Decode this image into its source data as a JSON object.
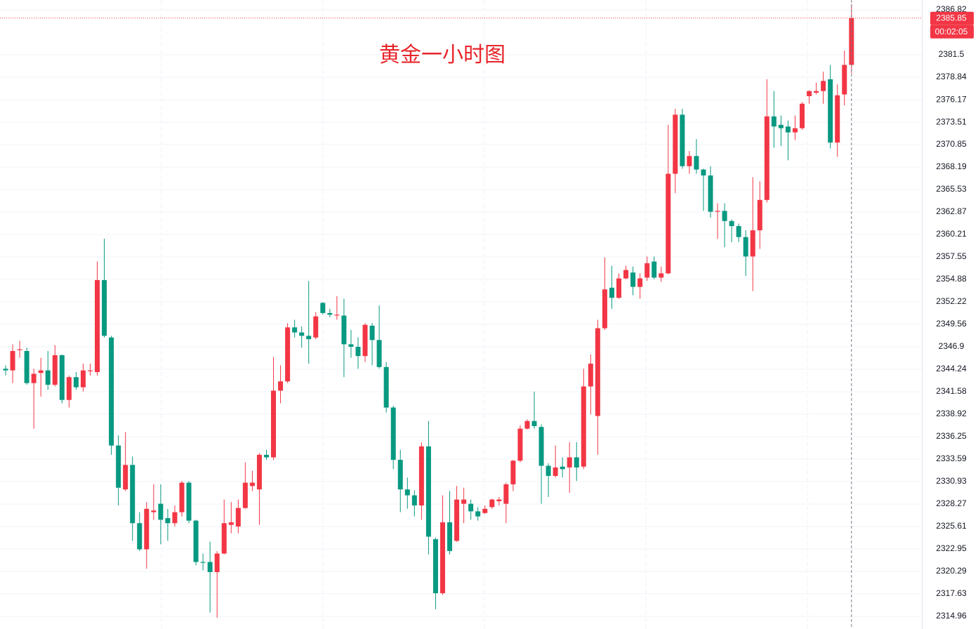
{
  "chart_data": {
    "type": "candlestick",
    "title": "黄金一小时图",
    "up_color": "#f23645",
    "down_color": "#089981",
    "ylim": [
      2313.46,
      2387.99
    ],
    "yticks": [
      2386.82,
      2381.5,
      2378.84,
      2376.17,
      2373.51,
      2370.85,
      2368.19,
      2365.53,
      2362.87,
      2360.21,
      2357.55,
      2354.88,
      2352.22,
      2349.56,
      2346.9,
      2344.24,
      2341.58,
      2338.92,
      2336.25,
      2333.59,
      2330.93,
      2328.27,
      2325.61,
      2322.95,
      2320.29,
      2317.63,
      2314.96
    ],
    "grid": true,
    "last_price": 2385.85,
    "countdown": "00:02:05",
    "open": [
      2344.3,
      2344.1,
      2346.5,
      2346.4,
      2342.6,
      2343.8,
      2344.1,
      2342.4,
      2345.9,
      2340.6,
      2343.3,
      2342.1,
      2344.0,
      2343.9,
      2354.8,
      2348.0,
      2335.2,
      2330.0,
      2332.9,
      2326.0,
      2322.9,
      2327.3,
      2328.3,
      2326.6,
      2326.0,
      2327.3,
      2330.8,
      2326.3,
      2321.4,
      2321.4,
      2320.2,
      2322.4,
      2325.8,
      2325.6,
      2327.8,
      2330.4,
      2330.0,
      2334.1,
      2333.8,
      2341.7,
      2342.8,
      2349.2,
      2348.6,
      2348.2,
      2348.0,
      2352.1,
      2350.9,
      2350.6,
      2350.6,
      2347.2,
      2346.9,
      2345.8,
      2349.4,
      2347.7,
      2344.5,
      2339.7,
      2333.5,
      2330.0,
      2329.3,
      2328.1,
      2335.1,
      2324.1,
      2317.7,
      2326.1,
      2323.9,
      2328.3,
      2328.3,
      2327.4,
      2327.2,
      2327.9,
      2328.6,
      2328.3,
      2330.6,
      2333.4,
      2337.2,
      2338.1,
      2337.4,
      2332.8,
      2331.6,
      2332.7,
      2332.6,
      2333.8,
      2332.7,
      2342.2,
      2338.7,
      2349.1,
      2353.9,
      2352.7,
      2355.0,
      2355.7,
      2354.0,
      2355.1,
      2357.0,
      2355.1,
      2355.6,
      2367.4,
      2374.4,
      2368.3,
      2369.5,
      2367.9,
      2367.2,
      2362.9,
      2363.0,
      2361.8,
      2361.2,
      2359.9,
      2357.6,
      2360.7,
      2364.3,
      2374.2,
      2373.2,
      2373.0,
      2372.3,
      2372.8,
      2376.6,
      2377.0,
      2377.2,
      2378.6,
      2371.1,
      2376.8,
      2380.3
    ],
    "high": [
      2344.7,
      2347.2,
      2347.6,
      2346.8,
      2344.3,
      2345.6,
      2346.4,
      2347.1,
      2346.0,
      2343.5,
      2343.9,
      2344.9,
      2344.9,
      2357.0,
      2359.7,
      2348.2,
      2336.4,
      2336.8,
      2333.9,
      2327.3,
      2328.5,
      2330.6,
      2330.6,
      2327.7,
      2328.1,
      2331.0,
      2331.0,
      2326.4,
      2322.4,
      2323.8,
      2322.7,
      2328.8,
      2328.5,
      2328.8,
      2333.2,
      2332.2,
      2334.3,
      2334.7,
      2345.7,
      2344.7,
      2349.7,
      2350.1,
      2349.3,
      2354.7,
      2351.0,
      2352.2,
      2351.4,
      2352.9,
      2352.6,
      2348.9,
      2348.0,
      2349.7,
      2349.7,
      2351.8,
      2345.1,
      2339.9,
      2334.7,
      2331.4,
      2329.9,
      2335.6,
      2338.1,
      2324.3,
      2329.3,
      2329.8,
      2330.4,
      2330.2,
      2328.8,
      2327.9,
      2328.1,
      2328.9,
      2329.1,
      2330.8,
      2333.5,
      2337.6,
      2338.3,
      2341.6,
      2337.7,
      2333.1,
      2335.2,
      2333.8,
      2335.6,
      2335.6,
      2344.3,
      2346.0,
      2350.1,
      2357.5,
      2356.5,
      2355.6,
      2356.5,
      2356.4,
      2355.6,
      2357.6,
      2357.6,
      2356.4,
      2373.2,
      2375.1,
      2375.1,
      2370.1,
      2371.5,
      2368.0,
      2368.3,
      2363.9,
      2363.9,
      2362.0,
      2361.5,
      2360.7,
      2367.0,
      2366.5,
      2378.6,
      2377.2,
      2374.3,
      2373.7,
      2374.3,
      2375.9,
      2377.3,
      2378.2,
      2379.5,
      2380.3,
      2378.0,
      2382.0,
      2387.5
    ],
    "low": [
      2343.5,
      2342.6,
      2345.6,
      2342.4,
      2337.2,
      2341.0,
      2341.8,
      2342.2,
      2340.2,
      2339.7,
      2341.8,
      2341.6,
      2343.5,
      2343.5,
      2348.0,
      2334.1,
      2328.1,
      2329.8,
      2323.9,
      2322.7,
      2320.6,
      2326.4,
      2323.5,
      2323.9,
      2325.6,
      2326.8,
      2326.0,
      2321.0,
      2320.4,
      2315.4,
      2314.8,
      2322.3,
      2324.8,
      2324.8,
      2327.7,
      2329.8,
      2325.8,
      2333.5,
      2333.5,
      2340.2,
      2342.6,
      2348.0,
      2346.8,
      2344.9,
      2347.8,
      2350.7,
      2350.4,
      2350.1,
      2343.3,
      2345.6,
      2344.3,
      2345.1,
      2344.7,
      2344.3,
      2339.1,
      2332.4,
      2327.3,
      2327.7,
      2326.8,
      2326.4,
      2322.3,
      2315.8,
      2317.5,
      2322.3,
      2323.8,
      2326.0,
      2326.4,
      2326.3,
      2327.1,
      2327.7,
      2328.1,
      2326.0,
      2329.8,
      2333.2,
      2337.1,
      2337.2,
      2328.3,
      2329.1,
      2331.4,
      2331.4,
      2329.6,
      2331.0,
      2332.4,
      2338.9,
      2334.1,
      2348.9,
      2351.4,
      2352.6,
      2354.9,
      2353.0,
      2352.6,
      2354.7,
      2354.9,
      2354.6,
      2355.5,
      2365.1,
      2368.0,
      2367.4,
      2367.4,
      2363.0,
      2362.2,
      2359.7,
      2358.7,
      2359.3,
      2359.3,
      2355.3,
      2353.5,
      2358.5,
      2364.0,
      2370.5,
      2370.7,
      2369.0,
      2371.4,
      2372.6,
      2375.7,
      2376.8,
      2375.7,
      2370.4,
      2369.4,
      2375.5,
      2379.3
    ],
    "close": [
      2344.1,
      2346.4,
      2346.6,
      2342.6,
      2343.7,
      2344.1,
      2342.4,
      2345.9,
      2340.6,
      2343.3,
      2342.1,
      2344.1,
      2344.1,
      2354.8,
      2348.2,
      2335.2,
      2330.2,
      2332.9,
      2326.0,
      2322.9,
      2327.7,
      2327.5,
      2326.4,
      2326.0,
      2327.3,
      2330.8,
      2326.3,
      2321.4,
      2321.3,
      2320.2,
      2322.4,
      2326.0,
      2326.1,
      2327.8,
      2330.8,
      2330.8,
      2334.1,
      2333.8,
      2341.7,
      2342.8,
      2349.2,
      2348.6,
      2348.2,
      2347.8,
      2350.5,
      2350.9,
      2350.7,
      2350.7,
      2347.2,
      2346.9,
      2345.8,
      2349.5,
      2347.7,
      2344.5,
      2339.7,
      2333.5,
      2330.0,
      2329.3,
      2328.1,
      2335.1,
      2324.4,
      2317.7,
      2326.1,
      2322.7,
      2328.8,
      2328.8,
      2327.4,
      2326.8,
      2327.7,
      2328.8,
      2328.8,
      2330.6,
      2333.4,
      2337.2,
      2338.1,
      2337.5,
      2332.8,
      2331.6,
      2332.6,
      2332.4,
      2333.8,
      2332.6,
      2342.2,
      2344.9,
      2349.1,
      2353.7,
      2352.7,
      2355.0,
      2356.0,
      2354.0,
      2355.0,
      2356.8,
      2355.1,
      2355.6,
      2367.4,
      2374.4,
      2368.3,
      2369.5,
      2367.9,
      2367.2,
      2362.9,
      2363.0,
      2361.8,
      2361.2,
      2359.9,
      2357.6,
      2360.7,
      2364.3,
      2374.2,
      2373.0,
      2372.8,
      2372.3,
      2372.8,
      2375.7,
      2377.2,
      2377.2,
      2378.4,
      2371.1,
      2376.7,
      2380.3,
      2385.85
    ]
  }
}
